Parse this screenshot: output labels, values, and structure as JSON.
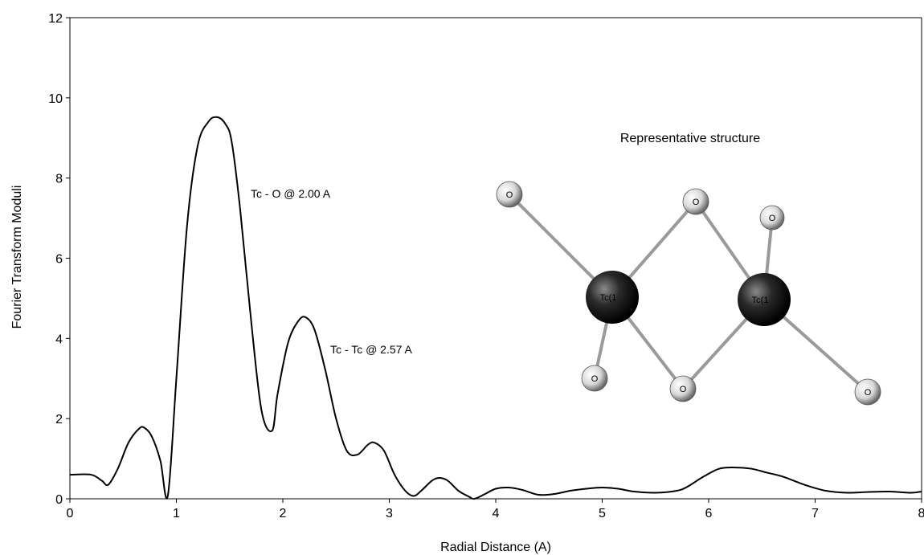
{
  "chart_data": {
    "type": "line",
    "title": "",
    "xlabel": "Radial Distance (A)",
    "ylabel": "Fourier Transform Moduli",
    "xlim": [
      0,
      8
    ],
    "ylim": [
      0,
      12
    ],
    "xticks": [
      "0",
      "1",
      "2",
      "3",
      "4",
      "5",
      "6",
      "7",
      "8"
    ],
    "yticks": [
      "0",
      "2",
      "4",
      "6",
      "8",
      "10",
      "12"
    ],
    "grid": false,
    "legend": "none",
    "series": [
      {
        "color": "#000000",
        "x": [
          0,
          0.2,
          0.3,
          0.36,
          0.45,
          0.55,
          0.65,
          0.7,
          0.77,
          0.85,
          0.92,
          1.0,
          1.1,
          1.2,
          1.3,
          1.38,
          1.46,
          1.52,
          1.6,
          1.7,
          1.8,
          1.9,
          1.95,
          2.05,
          2.15,
          2.22,
          2.3,
          2.4,
          2.5,
          2.6,
          2.7,
          2.8,
          2.86,
          2.95,
          3.05,
          3.15,
          3.23,
          3.3,
          3.4,
          3.47,
          3.55,
          3.65,
          3.75,
          3.8,
          3.9,
          4.0,
          4.12,
          4.25,
          4.4,
          4.55,
          4.7,
          4.85,
          5.0,
          5.15,
          5.3,
          5.5,
          5.7,
          5.8,
          5.95,
          6.1,
          6.25,
          6.4,
          6.55,
          6.7,
          6.9,
          7.1,
          7.3,
          7.5,
          7.7,
          7.9,
          8.0
        ],
        "y": [
          0.6,
          0.6,
          0.45,
          0.35,
          0.75,
          1.4,
          1.75,
          1.77,
          1.55,
          0.95,
          0.08,
          3.0,
          6.8,
          8.8,
          9.4,
          9.52,
          9.35,
          8.9,
          7.2,
          4.5,
          2.2,
          1.7,
          2.6,
          3.9,
          4.45,
          4.52,
          4.2,
          3.2,
          2.0,
          1.2,
          1.1,
          1.35,
          1.4,
          1.2,
          0.6,
          0.2,
          0.07,
          0.2,
          0.45,
          0.52,
          0.45,
          0.2,
          0.05,
          0.0,
          0.12,
          0.25,
          0.28,
          0.22,
          0.1,
          0.12,
          0.2,
          0.25,
          0.28,
          0.25,
          0.18,
          0.15,
          0.2,
          0.3,
          0.55,
          0.75,
          0.78,
          0.75,
          0.65,
          0.55,
          0.35,
          0.2,
          0.15,
          0.17,
          0.18,
          0.15,
          0.18
        ]
      }
    ],
    "annotations": [
      {
        "text": "Tc - O @  2.00 A",
        "x": 1.7,
        "y": 7.5
      },
      {
        "text": "Tc - Tc @ 2.57 A",
        "x": 2.45,
        "y": 3.7
      }
    ]
  },
  "inset": {
    "title": "Representative structure",
    "atoms": {
      "tc_a_label": "Tc(1",
      "tc_b_label": "Tc(1",
      "oxygen_label": "O"
    }
  }
}
